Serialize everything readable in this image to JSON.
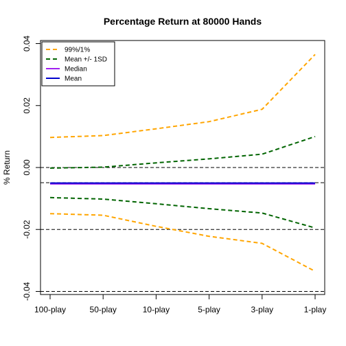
{
  "chart_data": {
    "type": "line",
    "title": "Percentage Return at 80000 Hands",
    "xlabel": "",
    "ylabel": "% Return",
    "categories": [
      "100-play",
      "50-play",
      "10-play",
      "5-play",
      "3-play",
      "1-play"
    ],
    "x_tick_labels": [
      "100-play",
      "50-play",
      "10-play",
      "5-play",
      "3-play",
      "1-play"
    ],
    "y_ticks": [
      -0.04,
      -0.02,
      0.0,
      0.02,
      0.04
    ],
    "y_tick_labels": [
      "-0.04",
      "-0.02",
      "0.00",
      "0.02",
      "0.04"
    ],
    "ylim": [
      -0.041,
      0.041
    ],
    "reference_lines": [
      -0.04,
      -0.02,
      0.0,
      -0.0049
    ],
    "legend_position": "top-left",
    "legend": [
      {
        "label": "99%/1%",
        "color": "#FFA500",
        "dash": "dashed"
      },
      {
        "label": "Mean +/- 1SD",
        "color": "#006400",
        "dash": "dashed"
      },
      {
        "label": "Median",
        "color": "#A020F0",
        "dash": "solid"
      },
      {
        "label": "Mean",
        "color": "#0000CD",
        "dash": "solid"
      }
    ],
    "series": [
      {
        "legend_index": 0,
        "color": "#FFA500",
        "dash": "dashed",
        "values": [
          0.0097,
          0.0103,
          0.0125,
          0.0148,
          0.0188,
          0.0365
        ]
      },
      {
        "legend_index": 0,
        "color": "#FFA500",
        "dash": "dashed",
        "values": [
          -0.0149,
          -0.0154,
          -0.019,
          -0.0222,
          -0.0245,
          -0.0335
        ]
      },
      {
        "legend_index": 1,
        "color": "#006400",
        "dash": "dashed",
        "values": [
          -0.0002,
          0.0001,
          0.0015,
          0.0028,
          0.0043,
          0.01
        ]
      },
      {
        "legend_index": 1,
        "color": "#006400",
        "dash": "dashed",
        "values": [
          -0.0097,
          -0.0102,
          -0.0117,
          -0.0133,
          -0.0147,
          -0.0195
        ]
      },
      {
        "legend_index": 2,
        "color": "#A020F0",
        "dash": "solid",
        "values": [
          -0.0053,
          -0.0053,
          -0.0053,
          -0.0053,
          -0.0053,
          -0.0053
        ]
      },
      {
        "legend_index": 3,
        "color": "#0000CD",
        "dash": "solid",
        "values": [
          -0.005,
          -0.005,
          -0.005,
          -0.005,
          -0.005,
          -0.005
        ]
      }
    ]
  }
}
